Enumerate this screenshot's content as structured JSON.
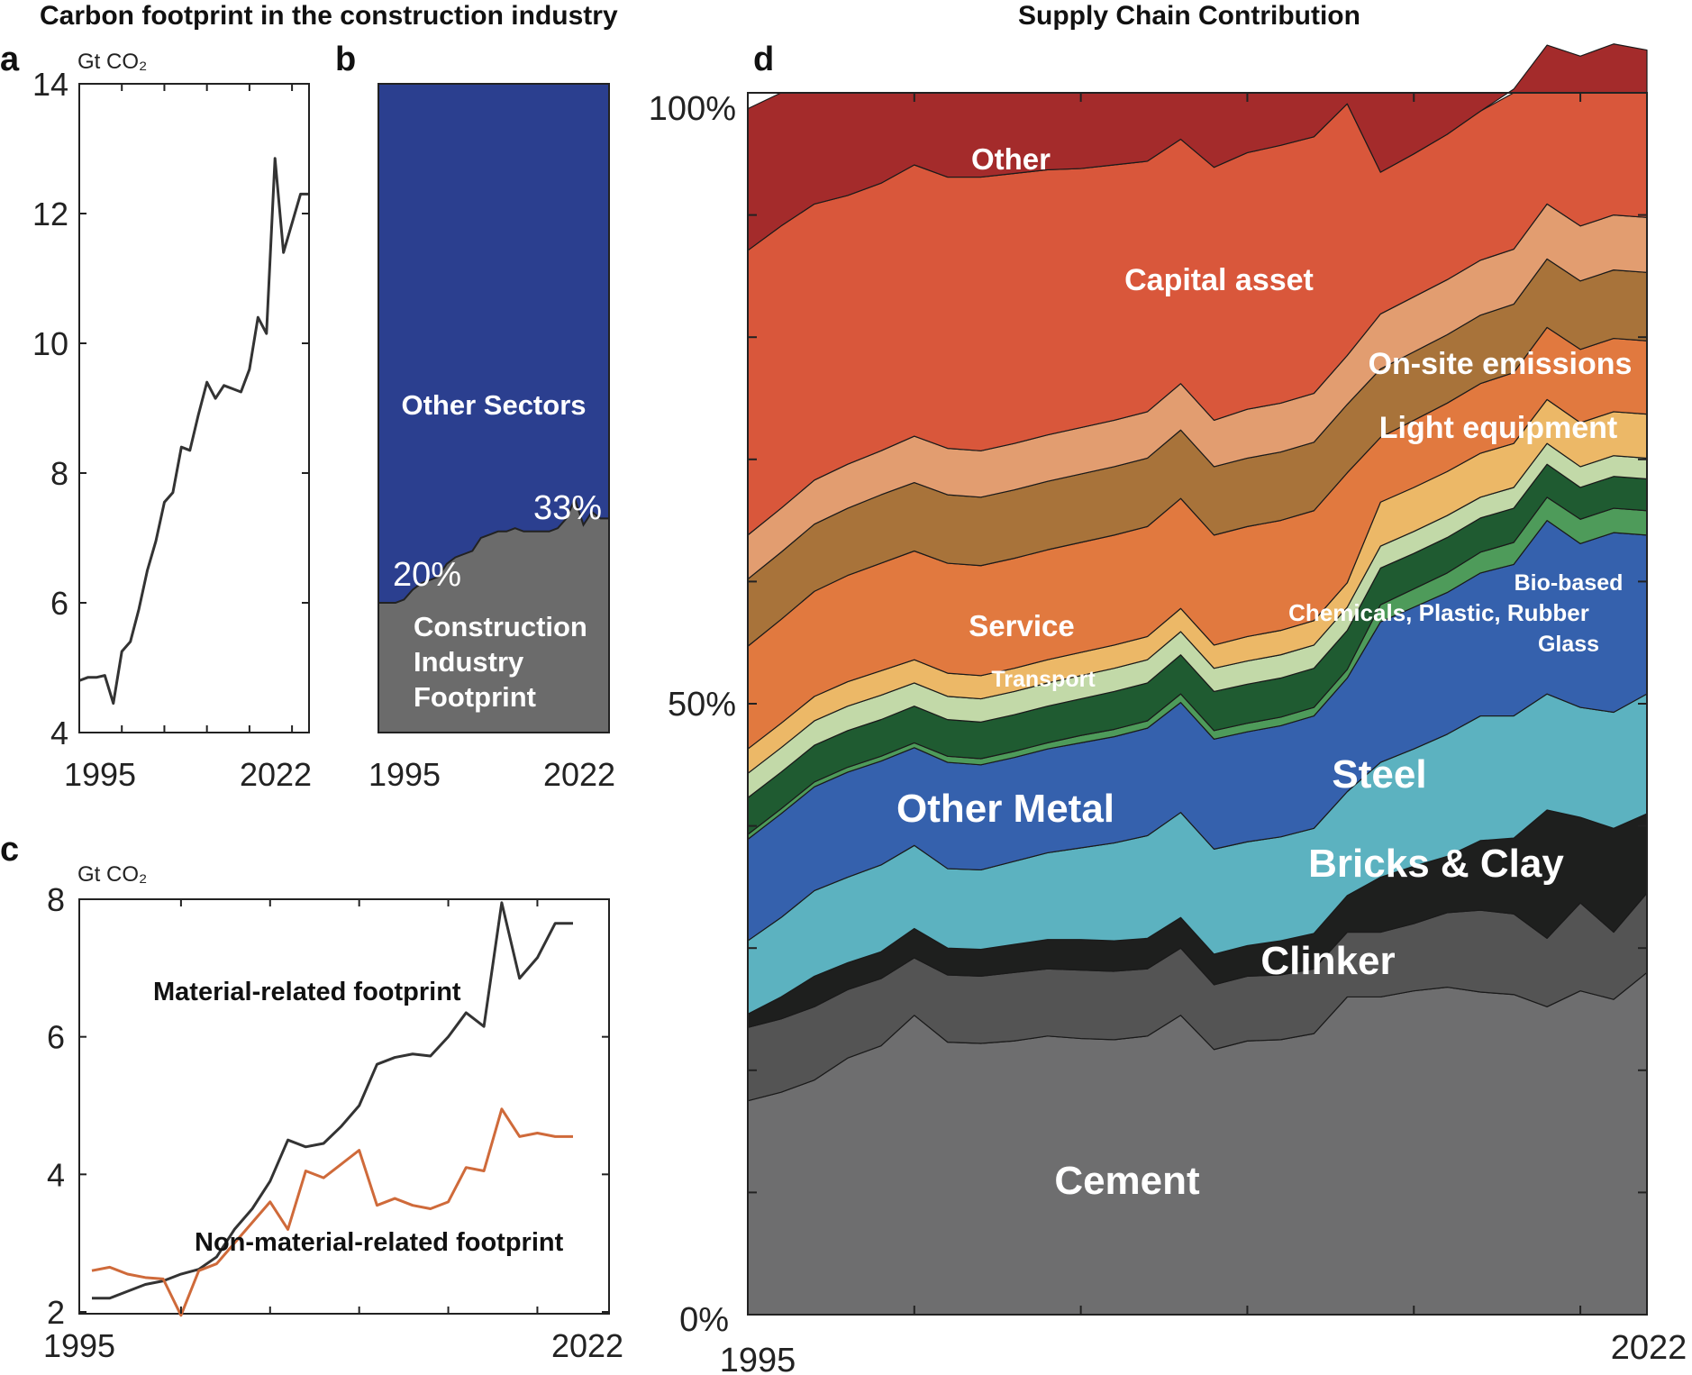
{
  "titles": {
    "left": "Carbon footprint in the construction industry",
    "right": "Supply Chain Contribution"
  },
  "chart_data": [
    {
      "panel": "a",
      "type": "line",
      "ylabel": "Gt CO₂",
      "xticks": [
        "1995",
        "2022"
      ],
      "yticks": [
        "4",
        "6",
        "8",
        "10",
        "12",
        "14"
      ],
      "ylim": [
        4,
        14
      ],
      "xlim": [
        1995,
        2022
      ],
      "grid": false,
      "x": [
        1995,
        1996,
        1997,
        1998,
        1999,
        2000,
        2001,
        2002,
        2003,
        2004,
        2005,
        2006,
        2007,
        2008,
        2009,
        2010,
        2011,
        2012,
        2013,
        2014,
        2015,
        2016,
        2017,
        2018,
        2019,
        2020,
        2021,
        2022
      ],
      "series": [
        {
          "values": [
            4.8,
            4.85,
            4.85,
            4.88,
            4.45,
            5.25,
            5.4,
            5.9,
            6.5,
            6.95,
            7.55,
            7.7,
            8.4,
            8.35,
            8.9,
            9.4,
            9.15,
            9.35,
            9.3,
            9.25,
            9.6,
            10.4,
            10.15,
            12.85,
            11.4,
            11.85,
            12.3,
            12.3
          ],
          "color": "#333333"
        }
      ]
    },
    {
      "panel": "b",
      "type": "area",
      "xticks": [
        "1995",
        "2022"
      ],
      "xlim": [
        1995,
        2022
      ],
      "ylim": [
        0,
        100
      ],
      "x": [
        1995,
        1996,
        1997,
        1998,
        1999,
        2000,
        2001,
        2002,
        2003,
        2004,
        2005,
        2006,
        2007,
        2008,
        2009,
        2010,
        2011,
        2012,
        2013,
        2014,
        2015,
        2016,
        2017,
        2018,
        2019,
        2020,
        2021,
        2022
      ],
      "series": [
        {
          "name": "Construction Industry Footprint",
          "values": [
            20,
            20,
            20,
            20.5,
            22,
            23,
            23.5,
            24,
            26,
            27,
            27.5,
            28,
            30,
            30.5,
            31,
            31,
            31.5,
            31,
            31,
            31,
            31,
            31.5,
            33,
            36,
            32,
            34,
            33,
            33
          ],
          "color": "#6b6b6b"
        },
        {
          "name": "Other Sectors",
          "values": [
            80,
            80,
            80,
            79.5,
            78,
            77,
            76.5,
            76,
            74,
            73,
            72.5,
            72,
            70,
            69.5,
            69,
            69,
            68.5,
            69,
            69,
            69,
            69,
            68.5,
            67,
            64,
            68,
            66,
            67,
            67
          ],
          "color": "#2b3f8f"
        }
      ],
      "annotations": [
        "20%",
        "33%"
      ]
    },
    {
      "panel": "c",
      "type": "line",
      "ylabel": "Gt CO₂",
      "xticks": [
        "1995",
        "2022"
      ],
      "yticks": [
        "2",
        "4",
        "6",
        "8"
      ],
      "ylim": [
        2,
        8
      ],
      "xlim": [
        1995,
        2022
      ],
      "grid": false,
      "x": [
        1995,
        1996,
        1997,
        1998,
        1999,
        2000,
        2001,
        2002,
        2003,
        2004,
        2005,
        2006,
        2007,
        2008,
        2009,
        2010,
        2011,
        2012,
        2013,
        2014,
        2015,
        2016,
        2017,
        2018,
        2019,
        2020,
        2021,
        2022
      ],
      "series": [
        {
          "name": "Material-related footprint",
          "values": [
            2.2,
            2.2,
            2.3,
            2.4,
            2.45,
            2.55,
            2.62,
            2.8,
            3.2,
            3.5,
            3.9,
            4.5,
            4.4,
            4.45,
            4.7,
            5.0,
            5.6,
            5.7,
            5.75,
            5.72,
            6.0,
            6.35,
            6.15,
            7.95,
            6.85,
            7.15,
            7.65,
            7.65
          ],
          "color": "#333333"
        },
        {
          "name": "Non-material-related footprint",
          "values": [
            2.6,
            2.65,
            2.55,
            2.5,
            2.48,
            1.95,
            2.6,
            2.7,
            3.0,
            3.3,
            3.6,
            3.2,
            4.05,
            3.95,
            4.15,
            4.35,
            3.55,
            3.65,
            3.55,
            3.5,
            3.6,
            4.1,
            4.05,
            4.95,
            4.55,
            4.6,
            4.55,
            4.55
          ],
          "color": "#cf6a3a"
        }
      ]
    },
    {
      "panel": "d",
      "type": "area",
      "stacked": true,
      "xticks": [
        "1995",
        "2022"
      ],
      "yticks": [
        "0%",
        "50%",
        "100%"
      ],
      "ylim": [
        0,
        100
      ],
      "xlim": [
        1995,
        2022
      ],
      "x": [
        1995,
        1996,
        1997,
        1998,
        1999,
        2000,
        2001,
        2002,
        2003,
        2004,
        2005,
        2006,
        2007,
        2008,
        2009,
        2010,
        2011,
        2012,
        2013,
        2014,
        2015,
        2016,
        2017,
        2018,
        2019,
        2020,
        2021,
        2022
      ],
      "series": [
        {
          "name": "Cement",
          "values": [
            17.5,
            18.2,
            19.2,
            21,
            22,
            24.5,
            22.3,
            22.2,
            22.4,
            22.8,
            22.6,
            22.5,
            22.8,
            24.5,
            21.7,
            22.4,
            22.5,
            23,
            26,
            26,
            26.5,
            26.8,
            26.4,
            26.2,
            25.2,
            26.5,
            25.8,
            28
          ],
          "color": "#6e6e6f"
        },
        {
          "name": "Clinker",
          "values": [
            6,
            6,
            6,
            5.6,
            5.5,
            4.7,
            5.5,
            5.5,
            5.6,
            5.5,
            5.6,
            5.6,
            5.5,
            5.5,
            5.3,
            5.3,
            5.3,
            5.3,
            5.3,
            5.3,
            5.5,
            6.1,
            6.7,
            6.6,
            5.6,
            7.2,
            5.5,
            6.5
          ],
          "color": "#545454"
        },
        {
          "name": "Bricks & Clay",
          "values": [
            1.1,
            1.8,
            2.5,
            2.2,
            2.2,
            2.4,
            2.2,
            2.2,
            2.3,
            2.4,
            2.5,
            2.5,
            2.5,
            2.5,
            2.5,
            2.5,
            2.8,
            2.9,
            3.0,
            4.5,
            4.7,
            4.6,
            5.7,
            6.2,
            10.5,
            7.0,
            8.5,
            6.5
          ],
          "color": "#1e1f1e"
        },
        {
          "name": "Steel",
          "values": [
            6,
            6.5,
            7,
            7,
            7.1,
            6.8,
            6.5,
            6.5,
            6.8,
            7.1,
            7.5,
            8.0,
            8.4,
            8.6,
            8.6,
            8.5,
            8.5,
            8.6,
            8.5,
            9.4,
            9.6,
            10,
            10.2,
            10,
            9.5,
            9.0,
            9.5,
            9.8
          ],
          "color": "#5cb2c0"
        },
        {
          "name": "Other Metal",
          "values": [
            8.3,
            8.5,
            8.5,
            8.6,
            8.5,
            8.0,
            8.7,
            8.6,
            8.5,
            8.5,
            8.6,
            8.7,
            8.8,
            9.0,
            9.0,
            9.0,
            9.1,
            9.2,
            9.3,
            11.5,
            11.6,
            11.6,
            11.7,
            12.4,
            14.2,
            13.4,
            14.7,
            13.0
          ],
          "color": "#3561ad"
        },
        {
          "name": "Glass",
          "values": [
            0.4,
            0.4,
            0.4,
            0.4,
            0.4,
            0.4,
            0.5,
            0.5,
            0.5,
            0.5,
            0.6,
            0.6,
            0.6,
            0.7,
            0.7,
            0.7,
            0.7,
            0.7,
            0.7,
            1.4,
            1.5,
            1.6,
            1.7,
            1.8,
            1.9,
            2.0,
            2.0,
            2.0
          ],
          "color": "#4e9b5a"
        },
        {
          "name": "Chemicals, Plastic, Rubber",
          "values": [
            3.0,
            3.0,
            3.0,
            3.0,
            3.0,
            3.0,
            3.0,
            3.0,
            3.0,
            3.0,
            3.0,
            3.1,
            3.1,
            3.2,
            3.2,
            3.2,
            3.2,
            3.2,
            3.2,
            3.0,
            2.9,
            2.9,
            2.8,
            2.8,
            2.7,
            2.6,
            2.6,
            2.6
          ],
          "color": "#1f5b31"
        },
        {
          "name": "Bio-based",
          "values": [
            2.0,
            2.0,
            2.0,
            2.0,
            2.0,
            1.9,
            1.9,
            1.9,
            1.9,
            1.9,
            1.9,
            1.9,
            1.9,
            1.9,
            1.9,
            1.9,
            1.9,
            1.9,
            1.9,
            1.8,
            1.8,
            1.8,
            1.7,
            1.7,
            1.7,
            1.7,
            1.7,
            1.7
          ],
          "color": "#c2d9a8"
        },
        {
          "name": "Transport",
          "values": [
            2.0,
            2.0,
            2.0,
            2.0,
            2.0,
            1.9,
            1.9,
            1.9,
            1.9,
            1.9,
            1.9,
            1.9,
            1.9,
            1.9,
            1.9,
            2.0,
            2.0,
            2.0,
            2.0,
            3.6,
            3.6,
            3.6,
            3.6,
            3.6,
            3.6,
            3.6,
            3.6,
            3.6
          ],
          "color": "#ecb867"
        },
        {
          "name": "Service",
          "values": [
            8.4,
            8.5,
            8.6,
            8.7,
            8.8,
            8.9,
            9.0,
            9.0,
            9.0,
            9.0,
            9.0,
            9.0,
            9.0,
            9.0,
            9.0,
            9.0,
            9.0,
            9.0,
            9.0,
            5.3,
            5.5,
            5.6,
            5.7,
            5.8,
            5.9,
            6.0,
            6.0,
            6.0
          ],
          "color": "#e1793f"
        },
        {
          "name": "Light equipment",
          "values": [
            5.5,
            5.5,
            5.5,
            5.5,
            5.6,
            5.6,
            5.6,
            5.6,
            5.6,
            5.6,
            5.6,
            5.6,
            5.6,
            5.6,
            5.6,
            5.6,
            5.6,
            5.6,
            5.6,
            5.6,
            5.6,
            5.6,
            5.6,
            5.6,
            5.6,
            5.6,
            5.6,
            5.6
          ],
          "color": "#a8733a"
        },
        {
          "name": "On-site emissions",
          "values": [
            3.6,
            3.6,
            3.6,
            3.6,
            3.6,
            3.8,
            3.8,
            3.8,
            3.8,
            3.8,
            3.8,
            3.8,
            3.8,
            3.8,
            3.8,
            4.0,
            4.0,
            4.0,
            4.0,
            4.5,
            4.5,
            4.5,
            4.5,
            4.5,
            4.5,
            4.5,
            4.5,
            4.5
          ],
          "color": "#e29d70"
        },
        {
          "name": "Capital asset",
          "values": [
            23.3,
            23.1,
            22.6,
            22.0,
            21.9,
            22.2,
            22.2,
            22.4,
            22.1,
            21.7,
            21.2,
            20.9,
            20.5,
            20.0,
            20.7,
            21.0,
            21.1,
            21.0,
            20.6,
            11.6,
            11.7,
            11.9,
            12.2,
            13.1,
            13.0,
            13.9,
            14.0,
            13.7
          ],
          "color": "#d9573b"
        },
        {
          "name": "Other",
          "values": [
            11.6,
            11.6,
            11.4,
            11.4,
            11.4,
            11.7,
            11.5,
            11.4,
            11.3,
            11.1,
            10.9,
            10.9,
            10.9,
            11.2,
            10.8,
            10.5,
            10.4,
            10.2,
            10.2,
            9.4,
            9.3,
            9.0,
            8.7,
            8.6,
            9.1,
            8.8,
            8.5,
            8.1
          ],
          "color": "#a42b2b"
        }
      ]
    }
  ],
  "labels": {
    "a_letter": "a",
    "b_letter": "b",
    "c_letter": "c",
    "d_letter": "d",
    "b_other": "Other Sectors",
    "b_constr_1": "Construction",
    "b_constr_2": "Industry",
    "b_constr_3": "Footprint",
    "b_pct_start": "20%",
    "b_pct_end": "33%",
    "c_material": "Material-related footprint",
    "c_nonmaterial": "Non-material-related footprint",
    "d_other": "Other",
    "d_capital": "Capital asset",
    "d_onsite": "On-site emissions",
    "d_light": "Light equipment",
    "d_biobased": "Bio-based",
    "d_chem": "Chemicals, Plastic, Rubber",
    "d_glass": "Glass",
    "d_service": "Service",
    "d_transport": "Transport",
    "d_steel": "Steel",
    "d_othermetal": "Other Metal",
    "d_bricks": "Bricks & Clay",
    "d_clinker": "Clinker",
    "d_cement": "Cement"
  }
}
